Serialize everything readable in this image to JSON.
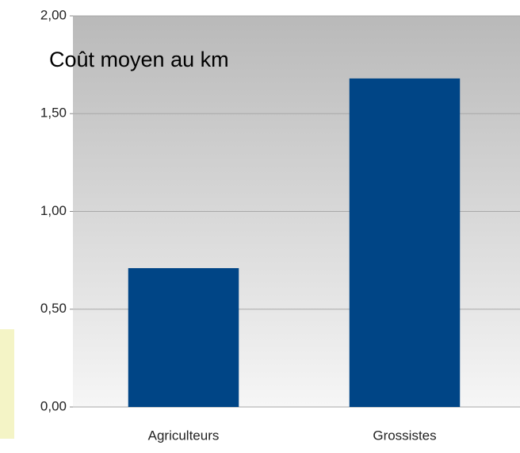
{
  "chart_data": {
    "type": "bar",
    "title": "Coût moyen au km",
    "categories": [
      "Agriculteurs",
      "Grossistes"
    ],
    "values": [
      0.71,
      1.68
    ],
    "color": "#004586",
    "ylim": [
      0,
      2
    ],
    "yticks": [
      {
        "value": 0,
        "label": "0,00"
      },
      {
        "value": 0.5,
        "label": "0,50"
      },
      {
        "value": 1,
        "label": "1,00"
      },
      {
        "value": 1.5,
        "label": "1,50"
      },
      {
        "value": 2,
        "label": "2,00"
      }
    ],
    "grid": true
  }
}
